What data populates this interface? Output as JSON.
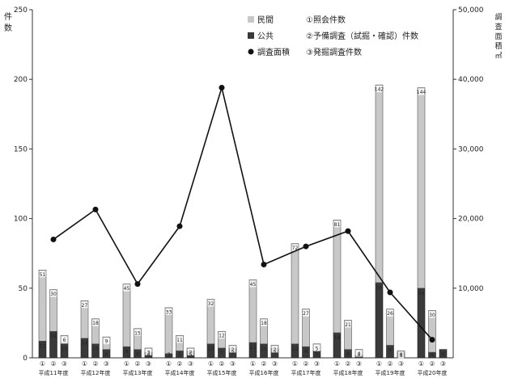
{
  "chart_data": {
    "type": "bar",
    "stacked": true,
    "left_axis_label": "件数",
    "right_axis_label": "調査面積㎡",
    "left_ticks": [
      "0",
      "50",
      "100",
      "150",
      "200",
      "250"
    ],
    "left_ylim": [
      0,
      250
    ],
    "right_ticks": [
      "10,000",
      "20,000",
      "30,000",
      "40,000",
      "50,000"
    ],
    "right_ylim": [
      0,
      50000
    ],
    "legend": {
      "private": "民間",
      "public": "公共",
      "area": "調査面積",
      "item1": "①照会件数",
      "item2": "②予備調査（試掘・確認）件数",
      "item3": "③発掘調査件数"
    },
    "colors": {
      "private": "#c8c8c8",
      "public": "#3a3a3a",
      "line": "#111111"
    },
    "sub_labels": [
      "①",
      "②",
      "③"
    ],
    "years": [
      {
        "label": "平成11年度",
        "bars": [
          {
            "private": 51,
            "public": 12,
            "private_label": "51",
            "public_label": "12"
          },
          {
            "private": 30,
            "public": 19,
            "private_label": "30",
            "public_label": "19"
          },
          {
            "private": 6,
            "public": 10,
            "private_label": "6",
            "public_label": "10"
          }
        ]
      },
      {
        "label": "平成12年度",
        "bars": [
          {
            "private": 27,
            "public": 14,
            "private_label": "27",
            "public_label": "14"
          },
          {
            "private": 18,
            "public": 10,
            "private_label": "18",
            "public_label": "10"
          },
          {
            "private": 9,
            "public": 6,
            "private_label": "9",
            "public_label": "6"
          }
        ]
      },
      {
        "label": "平成13年度",
        "bars": [
          {
            "private": 45,
            "public": 8,
            "private_label": "45",
            "public_label": "8"
          },
          {
            "private": 15,
            "public": 6,
            "private_label": "15",
            "public_label": "6"
          },
          {
            "private": 3,
            "public": 4,
            "private_label": "3",
            "public_label": "4"
          }
        ]
      },
      {
        "label": "平成14年度",
        "bars": [
          {
            "private": 33,
            "public": 3,
            "private_label": "33",
            "public_label": "3"
          },
          {
            "private": 11,
            "public": 5,
            "private_label": "11",
            "public_label": "5"
          },
          {
            "private": 2,
            "public": 5,
            "private_label": "2",
            "public_label": "5"
          }
        ]
      },
      {
        "label": "平成15年度",
        "bars": [
          {
            "private": 32,
            "public": 10,
            "private_label": "32",
            "public_label": "10"
          },
          {
            "private": 12,
            "public": 7,
            "private_label": "12",
            "public_label": "7"
          },
          {
            "private": 2,
            "public": 7,
            "private_label": "2",
            "public_label": "7"
          }
        ]
      },
      {
        "label": "平成16年度",
        "bars": [
          {
            "private": 45,
            "public": 11,
            "private_label": "45",
            "public_label": "11"
          },
          {
            "private": 18,
            "public": 10,
            "private_label": "18",
            "public_label": "10"
          },
          {
            "private": 2,
            "public": 7,
            "private_label": "2",
            "public_label": "7"
          }
        ]
      },
      {
        "label": "平成17年度",
        "bars": [
          {
            "private": 72,
            "public": 10,
            "private_label": "72",
            "public_label": "10"
          },
          {
            "private": 27,
            "public": 8,
            "private_label": "27",
            "public_label": "8"
          },
          {
            "private": 5,
            "public": 5,
            "private_label": "5",
            "public_label": "5"
          }
        ]
      },
      {
        "label": "平成18年度",
        "bars": [
          {
            "private": 81,
            "public": 18,
            "private_label": "81",
            "public_label": "18"
          },
          {
            "private": 21,
            "public": 6,
            "private_label": "21",
            "public_label": "6"
          },
          {
            "private": 4,
            "public": 2,
            "private_label": "4",
            "public_label": "2"
          }
        ]
      },
      {
        "label": "平成19年度",
        "bars": [
          {
            "private": 142,
            "public": 54,
            "private_label": "142",
            "public_label": "54"
          },
          {
            "private": 26,
            "public": 9,
            "private_label": "26",
            "public_label": "9"
          },
          {
            "private": 1,
            "public": 4,
            "private_label": "1",
            "public_label": "4"
          }
        ]
      },
      {
        "label": "平成20年度",
        "bars": [
          {
            "private": 144,
            "public": 50,
            "private_label": "144",
            "public_label": "50"
          },
          {
            "private": 30,
            "public": 4,
            "private_label": "30",
            "public_label": "4"
          },
          {
            "private": 0,
            "public": 6,
            "private_label": "0",
            "public_label": "6"
          }
        ]
      }
    ],
    "area_values": [
      17000,
      21300,
      10600,
      18900,
      38800,
      13400,
      16000,
      18200,
      9400,
      2600
    ]
  }
}
